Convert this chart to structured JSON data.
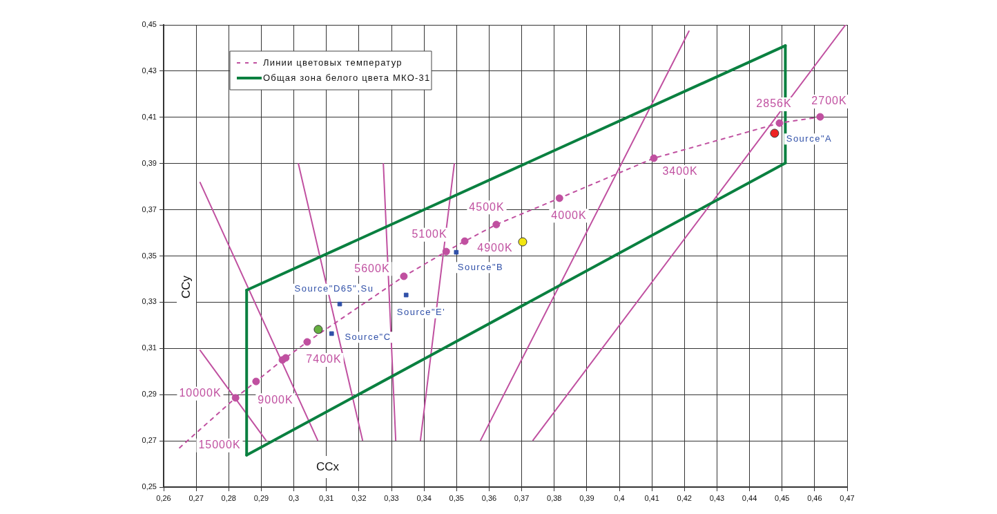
{
  "chart_data": {
    "type": "scatter",
    "xlabel": "CCx",
    "ylabel": "CCy",
    "xlim": [
      0.26,
      0.47
    ],
    "ylim": [
      0.25,
      0.45
    ],
    "xticks": [
      {
        "value": 0.26,
        "label": "0,26"
      },
      {
        "value": 0.27,
        "label": "0,27"
      },
      {
        "value": 0.28,
        "label": "0,28"
      },
      {
        "value": 0.29,
        "label": "0,29"
      },
      {
        "value": 0.3,
        "label": "0,3"
      },
      {
        "value": 0.31,
        "label": "0,31"
      },
      {
        "value": 0.32,
        "label": "0,32"
      },
      {
        "value": 0.33,
        "label": "0,33"
      },
      {
        "value": 0.34,
        "label": "0,34"
      },
      {
        "value": 0.35,
        "label": "0,35"
      },
      {
        "value": 0.36,
        "label": "0,36"
      },
      {
        "value": 0.37,
        "label": "0,37"
      },
      {
        "value": 0.38,
        "label": "0,38"
      },
      {
        "value": 0.39,
        "label": "0,39"
      },
      {
        "value": 0.4,
        "label": "0,4"
      },
      {
        "value": 0.41,
        "label": "0,41"
      },
      {
        "value": 0.42,
        "label": "0,42"
      },
      {
        "value": 0.43,
        "label": "0,43"
      },
      {
        "value": 0.44,
        "label": "0,44"
      },
      {
        "value": 0.45,
        "label": "0,45"
      },
      {
        "value": 0.46,
        "label": "0,46"
      },
      {
        "value": 0.47,
        "label": "0,47"
      }
    ],
    "yticks": [
      {
        "value": 0.25,
        "label": "0,25"
      },
      {
        "value": 0.27,
        "label": "0,27"
      },
      {
        "value": 0.29,
        "label": "0,29"
      },
      {
        "value": 0.31,
        "label": "0,31"
      },
      {
        "value": 0.33,
        "label": "0,33"
      },
      {
        "value": 0.35,
        "label": "0,35"
      },
      {
        "value": 0.37,
        "label": "0,37"
      },
      {
        "value": 0.39,
        "label": "0,39"
      },
      {
        "value": 0.41,
        "label": "0,41"
      },
      {
        "value": 0.43,
        "label": "0,43"
      },
      {
        "value": 0.45,
        "label": "0,45"
      }
    ],
    "grid": true,
    "legend": "top left",
    "series": [
      {
        "name": "Линии цветовых температур",
        "type": "line",
        "line_style": "dashed",
        "marker": "none",
        "color": "#c050a0",
        "x": [
          0.2649,
          0.2821,
          0.2884,
          0.2965,
          0.2975,
          0.3041,
          0.3338,
          0.3468,
          0.3525,
          0.3622,
          0.3816,
          0.4106,
          0.4492,
          0.4617
        ],
        "values": [
          0.267,
          0.2886,
          0.2957,
          0.305,
          0.3059,
          0.3128,
          0.3412,
          0.3519,
          0.3564,
          0.3636,
          0.375,
          0.3923,
          0.4075,
          0.4102
        ]
      },
      {
        "name": "Общая зона белого цвета МКО-31",
        "type": "line",
        "line_style": "solid",
        "marker": "none",
        "color": "#0a8040",
        "x": [
          0.2855,
          0.451
        ],
        "values": [
          0.3352,
          0.441
        ]
      },
      {
        "type": "line",
        "line_style": "solid",
        "marker": "none",
        "color": "#0a8040",
        "x": [
          0.451,
          0.451
        ],
        "values": [
          0.441,
          0.3902
        ]
      },
      {
        "type": "line",
        "line_style": "solid",
        "marker": "none",
        "color": "#0a8040",
        "x": [
          0.2855,
          0.451
        ],
        "values": [
          0.2638,
          0.3902
        ]
      },
      {
        "type": "line",
        "line_style": "solid",
        "marker": "none",
        "color": "#0a8040",
        "x": [
          0.2855,
          0.2855
        ],
        "values": [
          0.2638,
          0.3352
        ]
      },
      {
        "type": "scatter",
        "marker": "circle",
        "color": "#c050a0",
        "x": [
          0.2821,
          0.2884,
          0.2965,
          0.2975,
          0.3041,
          0.3338,
          0.3468,
          0.3525,
          0.3622,
          0.3816,
          0.4106,
          0.4492,
          0.4617
        ],
        "values": [
          0.2886,
          0.2957,
          0.305,
          0.3059,
          0.3128,
          0.3412,
          0.3519,
          0.3564,
          0.3636,
          0.375,
          0.3923,
          0.4075,
          0.4102
        ]
      },
      {
        "type": "line",
        "line_style": "solid",
        "marker": "none",
        "color": "#c050a0",
        "x": [
          0.2712,
          0.3073
        ],
        "values": [
          0.3818,
          0.2703
        ]
      },
      {
        "type": "line",
        "line_style": "solid",
        "marker": "none",
        "color": "#c050a0",
        "x": [
          0.2712,
          0.2914
        ],
        "values": [
          0.3092,
          0.2703
        ]
      },
      {
        "type": "line",
        "line_style": "solid",
        "marker": "none",
        "color": "#c050a0",
        "x": [
          0.3014,
          0.3211
        ],
        "values": [
          0.3899,
          0.2703
        ]
      },
      {
        "type": "line",
        "line_style": "solid",
        "marker": "none",
        "color": "#c050a0",
        "x": [
          0.3275,
          0.3313
        ],
        "values": [
          0.3899,
          0.2703
        ]
      },
      {
        "type": "line",
        "line_style": "solid",
        "marker": "none",
        "color": "#c050a0",
        "x": [
          0.3493,
          0.3389
        ],
        "values": [
          0.3899,
          0.2703
        ]
      },
      {
        "type": "line",
        "line_style": "solid",
        "marker": "none",
        "color": "#c050a0",
        "x": [
          0.4214,
          0.3574
        ],
        "values": [
          0.4473,
          0.2703
        ]
      },
      {
        "type": "line",
        "line_style": "solid",
        "marker": "none",
        "color": "#c050a0",
        "x": [
          0.4695,
          0.3735
        ],
        "values": [
          0.45,
          0.2703
        ]
      },
      {
        "type": "scatter",
        "marker": "square",
        "color": "#3050a8",
        "x": [
          0.3499,
          0.3141,
          0.3116,
          0.3345
        ],
        "values": [
          0.3516,
          0.3292,
          0.3164,
          0.3331
        ]
      },
      {
        "type": "scatter",
        "marker": "circle",
        "color": "#ee2222",
        "x": [
          0.4477
        ],
        "values": [
          0.4031
        ]
      },
      {
        "type": "scatter",
        "marker": "circle",
        "color": "#f2e612",
        "x": [
          0.3703
        ],
        "values": [
          0.3561
        ]
      },
      {
        "type": "scatter",
        "marker": "circle",
        "color": "#66b040",
        "x": [
          0.3075
        ],
        "values": [
          0.3182
        ]
      }
    ],
    "annotations": [
      "15000K",
      "10000K",
      "9000K",
      "7400K",
      "5600K",
      "5100K",
      "4900K",
      "4500K",
      "4000K",
      "3400K",
      "2856K",
      "2700K",
      "Source\"A",
      "Source\"B",
      "Source\"C",
      "Source\"E'",
      "Source\"D65\",Su"
    ]
  }
}
